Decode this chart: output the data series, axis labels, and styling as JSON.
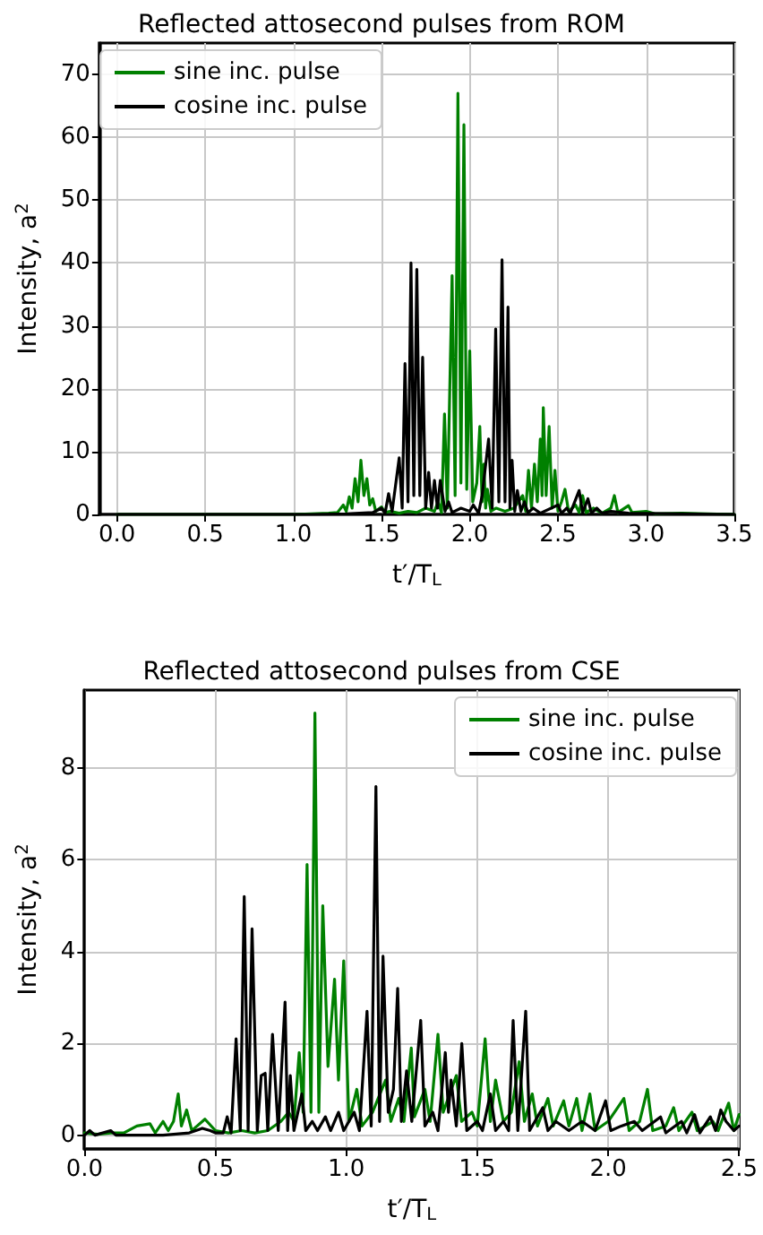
{
  "chart_data": [
    {
      "type": "line",
      "title": "Reflected attosecond pulses from ROM",
      "xlabel": "t′/T$_{L}$",
      "ylabel": "Intensity, a$^{2}$",
      "xlim": [
        -0.1,
        3.5
      ],
      "ylim": [
        0,
        75
      ],
      "xticks": [
        {
          "value": 0,
          "label": "0.0"
        },
        0.5,
        {
          "value": 1,
          "label": "1.0"
        },
        1.5,
        {
          "value": 2,
          "label": "2.0"
        },
        2.5,
        {
          "value": 3,
          "label": "3.0"
        },
        3.5
      ],
      "yticks": [
        0,
        10,
        20,
        30,
        40,
        50,
        60,
        70
      ],
      "grid": true,
      "legend": "top left",
      "marker": "none",
      "line_style": "solid",
      "series": [
        {
          "name": "sine inc. pulse",
          "color": "#008000",
          "x": [
            0,
            1.0,
            1.2,
            1.25,
            1.283,
            1.3,
            1.317,
            1.333,
            1.35,
            1.367,
            1.383,
            1.4,
            1.417,
            1.433,
            1.45,
            1.467,
            1.5,
            1.52,
            1.55,
            1.6,
            1.65,
            1.7,
            1.75,
            1.8,
            1.82,
            1.84,
            1.857,
            1.873,
            1.9,
            1.917,
            1.933,
            1.95,
            1.967,
            1.983,
            2.0,
            2.017,
            2.04,
            2.057,
            2.07,
            2.08,
            2.09,
            2.1,
            2.12,
            2.15,
            2.2,
            2.25,
            2.3,
            2.317,
            2.333,
            2.35,
            2.367,
            2.383,
            2.4,
            2.41,
            2.417,
            2.433,
            2.45,
            2.467,
            2.483,
            2.5,
            2.52,
            2.54,
            2.56,
            2.6,
            2.62,
            2.64,
            2.66,
            2.7,
            2.75,
            2.8,
            2.82,
            2.84,
            2.9,
            2.92,
            3.0,
            3.05,
            3.2,
            3.5
          ],
          "values": [
            0,
            0,
            0.2,
            0.3,
            1.5,
            0.5,
            2.8,
            1,
            5.7,
            2,
            8.6,
            3,
            5.7,
            1.5,
            2.5,
            0.5,
            1.2,
            0.3,
            0.5,
            0.2,
            0.5,
            0.3,
            1,
            0.5,
            2,
            0.3,
            16,
            1,
            38,
            3,
            67,
            5,
            62,
            4,
            26,
            2,
            5,
            14,
            2,
            8,
            1,
            4,
            0.5,
            1,
            0.5,
            1,
            3,
            0.5,
            7,
            1,
            8,
            2,
            12,
            3,
            17,
            3,
            14,
            1,
            7,
            0.5,
            2,
            4,
            0.5,
            1.5,
            0.3,
            3,
            0.3,
            1,
            0.2,
            1,
            3,
            0.3,
            1.4,
            0.3,
            0.5,
            0.1,
            0.2,
            0
          ]
        },
        {
          "name": "cosine inc. pulse",
          "color": "#000000",
          "x": [
            0,
            1.1,
            1.3,
            1.45,
            1.5,
            1.52,
            1.54,
            1.56,
            1.6,
            1.617,
            1.633,
            1.65,
            1.667,
            1.683,
            1.7,
            1.717,
            1.733,
            1.75,
            1.767,
            1.783,
            1.8,
            1.817,
            1.833,
            1.86,
            1.88,
            1.9,
            1.95,
            2.0,
            2.02,
            2.05,
            2.07,
            2.107,
            2.127,
            2.147,
            2.165,
            2.183,
            2.2,
            2.217,
            2.228,
            2.24,
            2.255,
            2.27,
            2.29,
            2.31,
            2.33,
            2.36,
            2.4,
            2.5,
            2.52,
            2.55,
            2.57,
            2.62,
            2.64,
            2.67,
            2.69,
            2.72,
            2.75,
            2.8,
            2.9,
            3.5
          ],
          "values": [
            0,
            0,
            0.1,
            0.3,
            1,
            0.2,
            3.3,
            0.5,
            9,
            1,
            24,
            2,
            40,
            3,
            39,
            3,
            25,
            1,
            6.7,
            1,
            5.4,
            1,
            5.4,
            0.5,
            2,
            0.3,
            1,
            0.5,
            1.5,
            0.2,
            3,
            12,
            1,
            29.5,
            2,
            40.5,
            2,
            33,
            1,
            8.6,
            0.5,
            3.8,
            0.5,
            2,
            0.3,
            1,
            0.2,
            1.5,
            0.2,
            1,
            0.2,
            3.8,
            0.3,
            2.5,
            0.2,
            1,
            0.2,
            0.5,
            0.2,
            0
          ]
        }
      ]
    },
    {
      "type": "line",
      "title": "Reflected attosecond pulses from CSE",
      "xlabel": "t′/T$_{L}$",
      "ylabel": "Intensity, a$^{2}$",
      "xlim": [
        0,
        2.5
      ],
      "ylim": [
        -0.3,
        9.7
      ],
      "xticks": [
        {
          "value": 0,
          "label": "0.0"
        },
        0.5,
        {
          "value": 1,
          "label": "1.0"
        },
        1.5,
        {
          "value": 2,
          "label": "2.0"
        },
        2.5
      ],
      "yticks": [
        0,
        2,
        4,
        6,
        8
      ],
      "grid": true,
      "legend": "top right",
      "marker": "none",
      "line_style": "solid",
      "series": [
        {
          "name": "sine inc. pulse",
          "color": "#008000",
          "x": [
            0,
            0.05,
            0.1,
            0.15,
            0.2,
            0.25,
            0.27,
            0.3,
            0.32,
            0.34,
            0.358,
            0.37,
            0.39,
            0.41,
            0.43,
            0.46,
            0.5,
            0.55,
            0.6,
            0.65,
            0.7,
            0.75,
            0.78,
            0.8,
            0.82,
            0.835,
            0.85,
            0.865,
            0.88,
            0.895,
            0.91,
            0.93,
            0.955,
            0.97,
            0.99,
            1.01,
            1.04,
            1.06,
            1.1,
            1.15,
            1.17,
            1.2,
            1.22,
            1.248,
            1.26,
            1.3,
            1.32,
            1.35,
            1.37,
            1.42,
            1.44,
            1.48,
            1.5,
            1.53,
            1.55,
            1.57,
            1.6,
            1.63,
            1.66,
            1.68,
            1.71,
            1.73,
            1.77,
            1.79,
            1.83,
            1.85,
            1.88,
            1.9,
            1.93,
            1.95,
            2.0,
            2.06,
            2.08,
            2.12,
            2.15,
            2.17,
            2.22,
            2.25,
            2.27,
            2.32,
            2.34,
            2.4,
            2.42,
            2.46,
            2.48,
            2.5
          ],
          "values": [
            0.05,
            0.02,
            0.05,
            0.05,
            0.2,
            0.25,
            0.05,
            0.3,
            0.1,
            0.3,
            0.9,
            0.2,
            0.55,
            0.1,
            0.2,
            0.35,
            0.1,
            0.05,
            0.1,
            0.05,
            0.1,
            0.3,
            0.5,
            0.3,
            1.8,
            0.5,
            5.9,
            0.5,
            9.2,
            0.5,
            5,
            1.5,
            3.4,
            1.2,
            3.8,
            0.3,
            1,
            0.2,
            0.5,
            1.2,
            0.3,
            0.8,
            0.3,
            1.9,
            0.4,
            1,
            0.3,
            2.2,
            0.5,
            1.3,
            0.3,
            0.5,
            0.2,
            2.1,
            0.3,
            1.2,
            0.3,
            0.5,
            1.6,
            0.3,
            0.9,
            0.2,
            0.8,
            0.2,
            0.75,
            0.2,
            0.8,
            0.1,
            0.9,
            0.1,
            0.3,
            0.8,
            0.1,
            0.3,
            1,
            0.1,
            0.2,
            0.6,
            0.1,
            0.5,
            0.1,
            0.3,
            0.1,
            0.7,
            0.1,
            0.45
          ]
        },
        {
          "name": "cosine inc. pulse",
          "color": "#000000",
          "x": [
            0,
            0.02,
            0.04,
            0.07,
            0.1,
            0.12,
            0.3,
            0.4,
            0.45,
            0.48,
            0.5,
            0.53,
            0.545,
            0.56,
            0.579,
            0.595,
            0.61,
            0.625,
            0.64,
            0.66,
            0.675,
            0.69,
            0.7,
            0.718,
            0.74,
            0.766,
            0.776,
            0.786,
            0.8,
            0.83,
            0.845,
            0.87,
            0.89,
            0.92,
            0.94,
            0.97,
            0.99,
            1.03,
            1.05,
            1.079,
            1.095,
            1.113,
            1.127,
            1.14,
            1.16,
            1.18,
            1.196,
            1.21,
            1.23,
            1.25,
            1.284,
            1.3,
            1.33,
            1.35,
            1.378,
            1.39,
            1.4,
            1.42,
            1.441,
            1.46,
            1.5,
            1.52,
            1.55,
            1.57,
            1.6,
            1.62,
            1.637,
            1.655,
            1.685,
            1.7,
            1.75,
            1.77,
            1.8,
            1.85,
            1.9,
            1.95,
            1.99,
            2.01,
            2.05,
            2.1,
            2.13,
            2.2,
            2.22,
            2.28,
            2.3,
            2.33,
            2.35,
            2.39,
            2.41,
            2.43,
            2.45,
            2.48,
            2.5
          ],
          "values": [
            0,
            0.1,
            0,
            0.05,
            0.1,
            0,
            0,
            0.05,
            0.15,
            0.1,
            0.05,
            0.05,
            0.4,
            0.05,
            2.1,
            0.1,
            5.2,
            0.1,
            4.5,
            0.1,
            1.3,
            1.35,
            0.1,
            2.2,
            0.1,
            2.9,
            0.1,
            1.3,
            0.1,
            0.9,
            0.1,
            0.3,
            0.1,
            0.4,
            0.1,
            0.5,
            0.1,
            0.5,
            0.1,
            2.7,
            0.2,
            7.6,
            0.3,
            3.9,
            0.5,
            1,
            3.2,
            0.3,
            1.4,
            0.3,
            2.5,
            0.2,
            0.5,
            0.1,
            1.8,
            0.5,
            1.2,
            0.2,
            2,
            0.1,
            0.3,
            0.1,
            0.9,
            0.1,
            0.3,
            0.1,
            2.5,
            0.1,
            2.7,
            0.1,
            0.6,
            0.1,
            0.3,
            0.1,
            0.3,
            0.1,
            0.75,
            0.1,
            0.2,
            0.3,
            0.1,
            0.4,
            0.05,
            0.3,
            0.05,
            0.45,
            0.05,
            0.4,
            0.1,
            0.55,
            0.3,
            0.1,
            0.2
          ]
        }
      ]
    }
  ]
}
